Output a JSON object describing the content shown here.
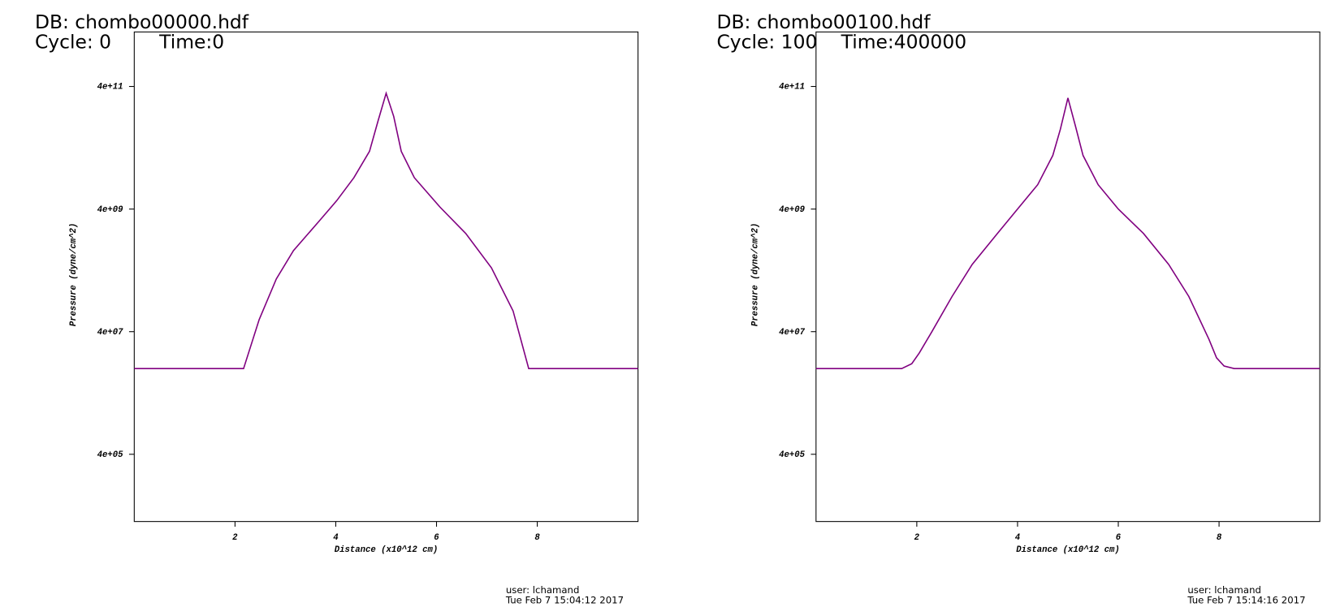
{
  "chart_data": [
    {
      "type": "line",
      "title": "DB: chombo00000.hdf",
      "cycle": "Cycle: 0",
      "time": "Time:0",
      "xlabel": "Distance (x10^12 cm)",
      "ylabel": "Pressure (dyne/cm^2)",
      "user": "user: lchamand",
      "timestamp": "Tue Feb  7 15:04:12 2017",
      "ylog": true,
      "color": "#800080",
      "xlim": [
        0,
        10
      ],
      "xticks": [
        2,
        4,
        6,
        8
      ],
      "ylim": [
        32000,
        3100000000000
      ],
      "yticks": [
        {
          "value": 400000,
          "label": "4e+05"
        },
        {
          "value": 40000000,
          "label": "4e+07"
        },
        {
          "value": 4000000000,
          "label": "4e+09"
        },
        {
          "value": 400000000000,
          "label": "4e+11"
        }
      ],
      "x": [
        0,
        2.17,
        2.48,
        2.82,
        3.16,
        3.68,
        4.02,
        4.36,
        4.67,
        4.84,
        5.0,
        5.15,
        5.3,
        5.56,
        6.07,
        6.58,
        7.09,
        7.52,
        7.83,
        10
      ],
      "values": [
        10000000,
        10000000,
        63000000,
        290000000,
        840000000,
        2600000000,
        5500000000,
        13000000000,
        35000000000,
        110000000000,
        310000000000,
        130000000000,
        35000000000,
        13000000000,
        4300000000,
        1600000000,
        440000000,
        87000000,
        10000000,
        10000000
      ]
    },
    {
      "type": "line",
      "title": "DB: chombo00100.hdf",
      "cycle": "Cycle: 100",
      "time": "Time:400000",
      "xlabel": "Distance (x10^12 cm)",
      "ylabel": "Pressure (dyne/cm^2)",
      "user": "user: lchamand",
      "timestamp": "Tue Feb  7 15:14:16 2017",
      "ylog": true,
      "color": "#800080",
      "xlim": [
        0,
        10
      ],
      "xticks": [
        2,
        4,
        6,
        8
      ],
      "ylim": [
        32000,
        3100000000000
      ],
      "yticks": [
        {
          "value": 400000,
          "label": "4e+05"
        },
        {
          "value": 40000000,
          "label": "4e+07"
        },
        {
          "value": 4000000000,
          "label": "4e+09"
        },
        {
          "value": 400000000000,
          "label": "4e+11"
        }
      ],
      "x": [
        0,
        1.7,
        1.9,
        2.05,
        2.3,
        2.7,
        3.1,
        3.6,
        4.0,
        4.4,
        4.7,
        4.85,
        5.0,
        5.15,
        5.3,
        5.6,
        6.0,
        6.5,
        7.0,
        7.4,
        7.8,
        7.95,
        8.1,
        8.3,
        10
      ],
      "values": [
        10000000,
        10000000,
        12000000,
        18000000,
        40000000,
        150000000,
        500000000,
        1600000000,
        4000000000,
        10000000000,
        30000000000,
        80000000000,
        260000000000,
        90000000000,
        30000000000,
        10000000000,
        4000000000,
        1600000000,
        500000000,
        150000000,
        30000000,
        15000000,
        11000000,
        10000000,
        10000000
      ]
    }
  ]
}
